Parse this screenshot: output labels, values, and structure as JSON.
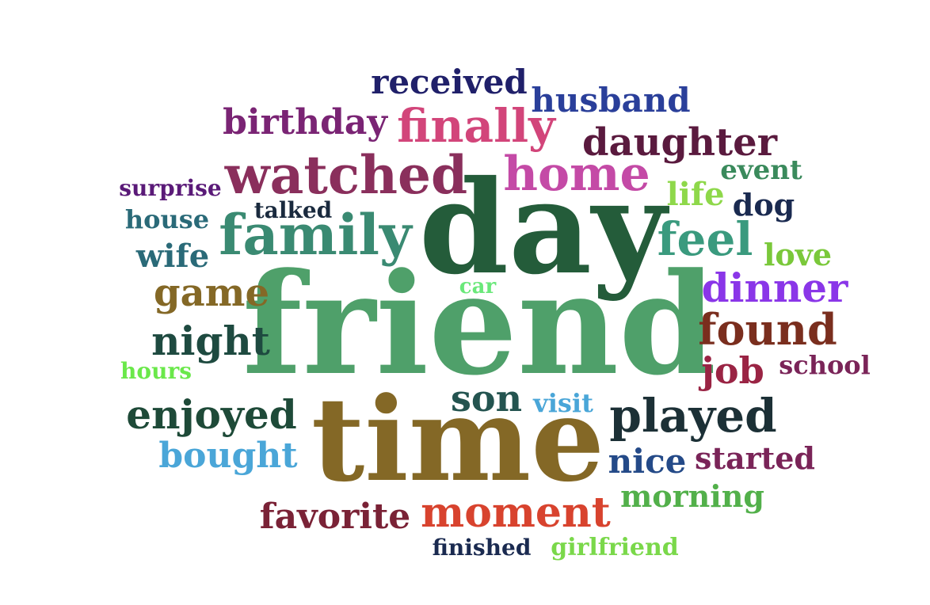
{
  "cloud": {
    "words": [
      {
        "text": "friend",
        "color": "#4fa06a"
      },
      {
        "text": "day",
        "color": "#245c3a"
      },
      {
        "text": "time",
        "color": "#846826"
      },
      {
        "text": "family",
        "color": "#3a8a72"
      },
      {
        "text": "watched",
        "color": "#8a2f5c"
      },
      {
        "text": "home",
        "color": "#c44aa6"
      },
      {
        "text": "finally",
        "color": "#d2457a"
      },
      {
        "text": "played",
        "color": "#1c3036"
      },
      {
        "text": "moment",
        "color": "#d8432e"
      },
      {
        "text": "daughter",
        "color": "#5a1a3e"
      },
      {
        "text": "found",
        "color": "#7a2e1e"
      },
      {
        "text": "enjoyed",
        "color": "#1e4a38"
      },
      {
        "text": "birthday",
        "color": "#7a2474"
      },
      {
        "text": "husband",
        "color": "#2a3f9a"
      },
      {
        "text": "received",
        "color": "#20206a"
      },
      {
        "text": "favorite",
        "color": "#7a2236"
      },
      {
        "text": "dinner",
        "color": "#8a36e8"
      },
      {
        "text": "bought",
        "color": "#4aa6d8"
      },
      {
        "text": "night",
        "color": "#1e4a40"
      },
      {
        "text": "feel",
        "color": "#3a9a7e"
      },
      {
        "text": "game",
        "color": "#846826"
      },
      {
        "text": "son",
        "color": "#245450"
      },
      {
        "text": "job",
        "color": "#9a2444"
      },
      {
        "text": "started",
        "color": "#7a2458"
      },
      {
        "text": "nice",
        "color": "#244a88"
      },
      {
        "text": "morning",
        "color": "#52b04a"
      },
      {
        "text": "wife",
        "color": "#2a6a78"
      },
      {
        "text": "life",
        "color": "#8ed84a"
      },
      {
        "text": "love",
        "color": "#7ac83a"
      },
      {
        "text": "school",
        "color": "#7a2458"
      },
      {
        "text": "event",
        "color": "#3a8a5c"
      },
      {
        "text": "house",
        "color": "#2a6a78"
      },
      {
        "text": "surprise",
        "color": "#5a1a78"
      },
      {
        "text": "talked",
        "color": "#1a2a3e"
      },
      {
        "text": "dog",
        "color": "#1a2a50"
      },
      {
        "text": "visit",
        "color": "#4aa6d8"
      },
      {
        "text": "finished",
        "color": "#1a2a50"
      },
      {
        "text": "girlfriend",
        "color": "#7ad84a"
      },
      {
        "text": "hours",
        "color": "#6ae84a"
      },
      {
        "text": "car",
        "color": "#6ae87a"
      }
    ]
  }
}
